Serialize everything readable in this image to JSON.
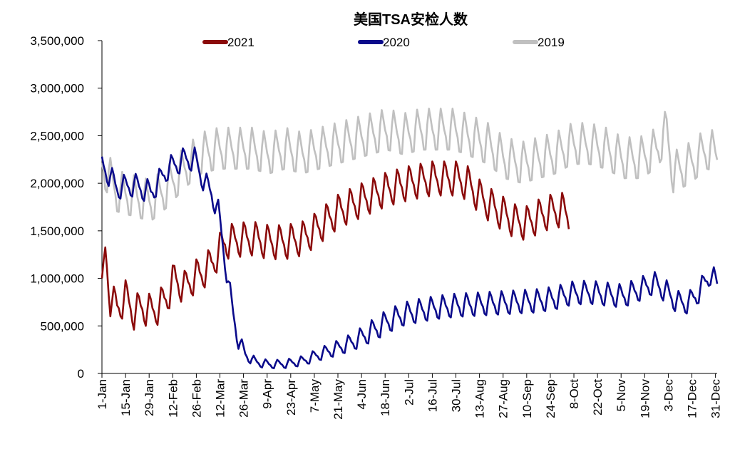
{
  "chart_data": {
    "type": "line",
    "title": "美国TSA安检人数",
    "xlabel": "",
    "ylabel": "",
    "ylim": [
      0,
      3500000
    ],
    "y_ticks": [
      "3,500,000",
      "3,000,000",
      "2,500,000",
      "2,000,000",
      "1,500,000",
      "1,000,000",
      "500,000",
      "0"
    ],
    "x_tick_labels": [
      "1-Jan",
      "15-Jan",
      "29-Jan",
      "12-Feb",
      "26-Feb",
      "12-Mar",
      "26-Mar",
      "9-Apr",
      "23-Apr",
      "7-May",
      "21-May",
      "4-Jun",
      "18-Jun",
      "2-Jul",
      "16-Jul",
      "30-Jul",
      "13-Aug",
      "27-Aug",
      "10-Sep",
      "24-Sep",
      "8-Oct",
      "22-Oct",
      "5-Nov",
      "19-Nov",
      "3-Dec",
      "17-Dec",
      "31-Dec"
    ],
    "x_tick_days": [
      1,
      15,
      29,
      43,
      57,
      71,
      85,
      99,
      113,
      127,
      141,
      155,
      169,
      183,
      197,
      211,
      225,
      239,
      253,
      267,
      281,
      295,
      309,
      323,
      337,
      351,
      365
    ],
    "x_range_days": [
      1,
      366
    ],
    "legend_position": "top",
    "grid": false,
    "series": [
      {
        "name": "2021",
        "color": "#8B0A0A",
        "anchors": [
          [
            1,
            820000
          ],
          [
            3,
            1300000
          ],
          [
            6,
            780000
          ],
          [
            10,
            690000
          ],
          [
            15,
            800000
          ],
          [
            20,
            640000
          ],
          [
            25,
            700000
          ],
          [
            30,
            650000
          ],
          [
            35,
            700000
          ],
          [
            40,
            820000
          ],
          [
            44,
            1000000
          ],
          [
            50,
            900000
          ],
          [
            55,
            1000000
          ],
          [
            60,
            1050000
          ],
          [
            66,
            1150000
          ],
          [
            71,
            1300000
          ],
          [
            74,
            1380000
          ],
          [
            80,
            1400000
          ],
          [
            90,
            1420000
          ],
          [
            100,
            1380000
          ],
          [
            110,
            1380000
          ],
          [
            120,
            1420000
          ],
          [
            127,
            1500000
          ],
          [
            141,
            1700000
          ],
          [
            155,
            1820000
          ],
          [
            169,
            1930000
          ],
          [
            183,
            2000000
          ],
          [
            197,
            2050000
          ],
          [
            211,
            2050000
          ],
          [
            218,
            2000000
          ],
          [
            225,
            1860000
          ],
          [
            232,
            1760000
          ],
          [
            239,
            1680000
          ],
          [
            246,
            1600000
          ],
          [
            253,
            1580000
          ],
          [
            260,
            1650000
          ],
          [
            267,
            1700000
          ],
          [
            274,
            1720000
          ],
          [
            278,
            1650000
          ]
        ],
        "amplitude": 160000,
        "period": 7
      },
      {
        "name": "2020",
        "color": "#0A0A8B",
        "anchors": [
          [
            1,
            2200000
          ],
          [
            10,
            1950000
          ],
          [
            20,
            1980000
          ],
          [
            30,
            1900000
          ],
          [
            40,
            2150000
          ],
          [
            50,
            2250000
          ],
          [
            56,
            2250000
          ],
          [
            62,
            2000000
          ],
          [
            66,
            1900000
          ],
          [
            70,
            1700000
          ],
          [
            74,
            1200000
          ],
          [
            78,
            700000
          ],
          [
            82,
            350000
          ],
          [
            86,
            200000
          ],
          [
            92,
            120000
          ],
          [
            100,
            95000
          ],
          [
            110,
            100000
          ],
          [
            120,
            130000
          ],
          [
            130,
            200000
          ],
          [
            140,
            260000
          ],
          [
            150,
            330000
          ],
          [
            160,
            430000
          ],
          [
            170,
            540000
          ],
          [
            180,
            620000
          ],
          [
            190,
            660000
          ],
          [
            200,
            690000
          ],
          [
            210,
            710000
          ],
          [
            220,
            720000
          ],
          [
            230,
            730000
          ],
          [
            240,
            740000
          ],
          [
            250,
            750000
          ],
          [
            260,
            760000
          ],
          [
            270,
            790000
          ],
          [
            280,
            840000
          ],
          [
            290,
            850000
          ],
          [
            300,
            830000
          ],
          [
            310,
            810000
          ],
          [
            320,
            880000
          ],
          [
            328,
            950000
          ],
          [
            333,
            900000
          ],
          [
            338,
            820000
          ],
          [
            343,
            740000
          ],
          [
            350,
            750000
          ],
          [
            357,
            900000
          ],
          [
            362,
            1050000
          ],
          [
            366,
            930000
          ]
        ],
        "amplitude": 110000,
        "period": 7
      },
      {
        "name": "2019",
        "color": "#C0C0C0",
        "anchors": [
          [
            1,
            2200000
          ],
          [
            10,
            1900000
          ],
          [
            20,
            1850000
          ],
          [
            30,
            1800000
          ],
          [
            40,
            1950000
          ],
          [
            50,
            2150000
          ],
          [
            60,
            2300000
          ],
          [
            70,
            2350000
          ],
          [
            80,
            2350000
          ],
          [
            90,
            2350000
          ],
          [
            100,
            2300000
          ],
          [
            110,
            2350000
          ],
          [
            120,
            2300000
          ],
          [
            130,
            2350000
          ],
          [
            140,
            2400000
          ],
          [
            150,
            2450000
          ],
          [
            160,
            2500000
          ],
          [
            170,
            2550000
          ],
          [
            180,
            2500000
          ],
          [
            190,
            2550000
          ],
          [
            200,
            2550000
          ],
          [
            210,
            2550000
          ],
          [
            220,
            2480000
          ],
          [
            230,
            2400000
          ],
          [
            240,
            2250000
          ],
          [
            250,
            2200000
          ],
          [
            260,
            2250000
          ],
          [
            270,
            2300000
          ],
          [
            280,
            2400000
          ],
          [
            290,
            2400000
          ],
          [
            300,
            2350000
          ],
          [
            310,
            2250000
          ],
          [
            320,
            2250000
          ],
          [
            330,
            2350000
          ],
          [
            336,
            2550000
          ],
          [
            340,
            2100000
          ],
          [
            350,
            2200000
          ],
          [
            360,
            2350000
          ],
          [
            366,
            2300000
          ]
        ],
        "amplitude": 200000,
        "period": 7
      }
    ]
  }
}
